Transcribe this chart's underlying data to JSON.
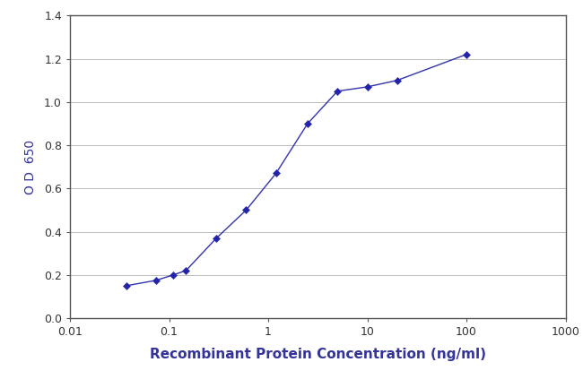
{
  "x_data": [
    0.037,
    0.074,
    0.11,
    0.148,
    0.3,
    0.6,
    1.2,
    2.5,
    5.0,
    10.0,
    20.0,
    100.0
  ],
  "y_data": [
    0.15,
    0.175,
    0.2,
    0.22,
    0.37,
    0.5,
    0.67,
    0.9,
    1.05,
    1.07,
    1.1,
    1.22
  ],
  "line_color": "#3333aa",
  "marker": "D",
  "marker_size": 4,
  "marker_facecolor": "#2222aa",
  "line_width": 1.0,
  "xlabel": "Recombinant Protein Concentration (ng/ml)",
  "ylabel": "O D  650",
  "ylim": [
    0.0,
    1.4
  ],
  "yticks": [
    0.0,
    0.2,
    0.4,
    0.6,
    0.8,
    1.0,
    1.2,
    1.4
  ],
  "xlim": [
    0.01,
    1000
  ],
  "background_color": "#ffffff",
  "plot_bg_color": "#ffffff",
  "grid_color": "#bbbbbb",
  "xlabel_fontsize": 11,
  "ylabel_fontsize": 10,
  "tick_fontsize": 9,
  "label_color": "#333399",
  "tick_color": "#333333",
  "spine_color": "#555555"
}
